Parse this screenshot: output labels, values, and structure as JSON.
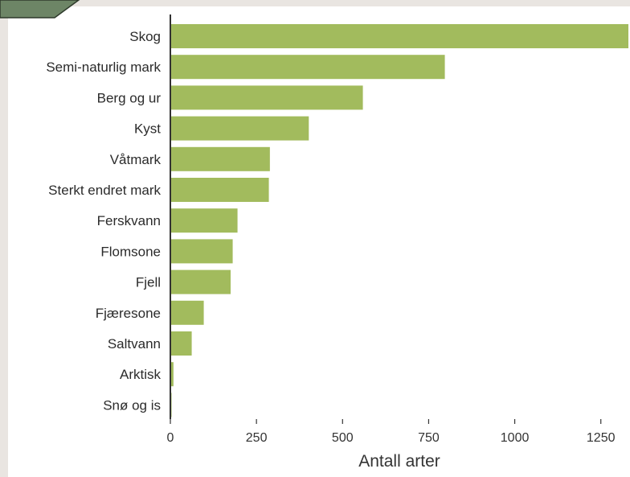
{
  "colors": {
    "bar": "#a2bb5d",
    "axis": "#333333",
    "page": "#e9e5e1",
    "panel": "#ffffff",
    "tab_fill": "#6d8566",
    "tab_stroke": "#2e3a2b"
  },
  "chart_data": {
    "type": "bar",
    "orientation": "horizontal",
    "categories": [
      "Skog",
      "Semi-naturlig mark",
      "Berg og ur",
      "Kyst",
      "Våtmark",
      "Sterkt endret mark",
      "Ferskvann",
      "Flomsone",
      "Fjell",
      "Fjæresone",
      "Saltvann",
      "Arktisk",
      "Snø og is"
    ],
    "values": [
      1330,
      797,
      559,
      402,
      289,
      286,
      195,
      181,
      175,
      97,
      62,
      9,
      3
    ],
    "xlabel": "Antall arter",
    "ylabel": "",
    "xlim": [
      0,
      1330
    ],
    "xticks": [
      0,
      250,
      500,
      750,
      1000,
      1250
    ],
    "xtick_labels": [
      "0",
      "250",
      "500",
      "750",
      "1000",
      "1250"
    ],
    "grid": false
  }
}
